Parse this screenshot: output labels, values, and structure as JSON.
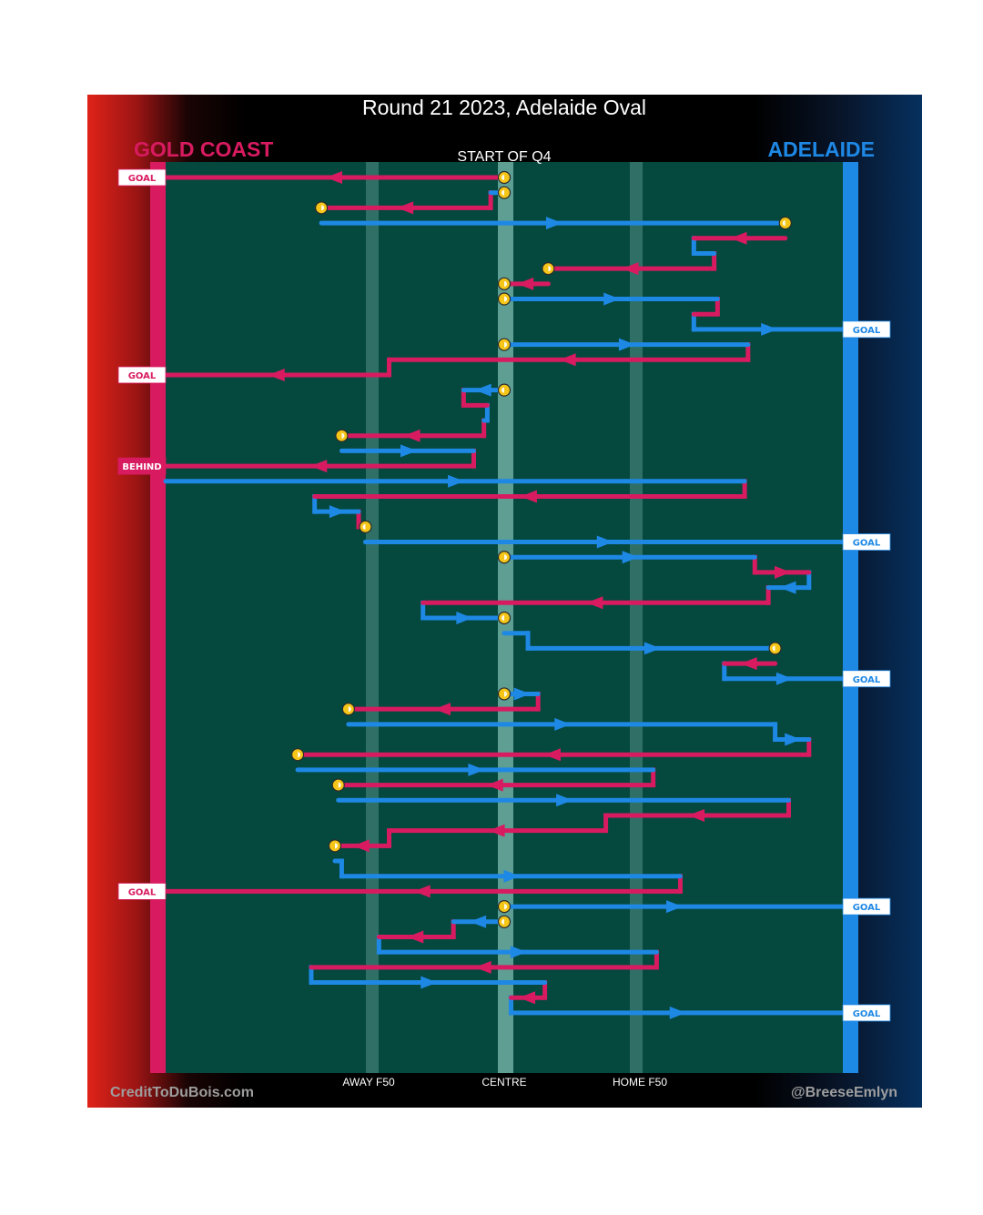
{
  "title": "Round 21 2023, Adelaide Oval",
  "subtitle": "START OF Q4",
  "teams": {
    "away": {
      "name": "GOLD COAST",
      "color": "#d81b60"
    },
    "home": {
      "name": "ADELAIDE",
      "color": "#1e88e5"
    }
  },
  "colors": {
    "field": "#05483e",
    "away_line": "#d81b60",
    "home_line": "#1e88e5",
    "marker": "#f5c518",
    "zone_line": "#2f6f66",
    "centre_line": "#5f9e93"
  },
  "credits": {
    "left": "CreditToDuBois.com",
    "right": "@BreeseEmlyn"
  },
  "chart_data": {
    "type": "line",
    "title": "Round 21 2023, Adelaide Oval",
    "subtitle": "START OF Q4",
    "x_axis": {
      "range": [
        -100,
        100
      ],
      "unit": "percent of ground (negative = Gold Coast goal end, positive = Adelaide goal end)",
      "ticks": [
        {
          "label": "AWAY F50",
          "value": -40
        },
        {
          "label": "CENTRE",
          "value": 0
        },
        {
          "label": "HOME F50",
          "value": 40
        }
      ]
    },
    "y_axis": {
      "meaning": "chain sequence, top to bottom",
      "range": [
        1,
        59
      ]
    },
    "series": [
      {
        "name": "GOLD COAST",
        "color": "#d81b60"
      },
      {
        "name": "ADELAIDE",
        "color": "#1e88e5"
      }
    ],
    "legend": "team names top-left (GOLD COAST) and top-right (ADELAIDE)",
    "chains": [
      {
        "start": true,
        "segs": [
          [
            "GC",
            1,
            0,
            -100
          ]
        ],
        "end": "GOAL"
      },
      {
        "start": true,
        "segs": [
          [
            "AD",
            2,
            0,
            -4
          ],
          [
            "GC",
            3,
            -4,
            -54
          ]
        ],
        "end": "flip"
      },
      {
        "start": false,
        "segs": [
          [
            "AD",
            4,
            -54,
            83
          ]
        ],
        "end": "flip"
      },
      {
        "start": false,
        "segs": [
          [
            "GC",
            5,
            83,
            56
          ],
          [
            "AD",
            6,
            56,
            62
          ],
          [
            "GC",
            7,
            62,
            13
          ]
        ],
        "end": "flip"
      },
      {
        "start": false,
        "segs": [
          [
            "GC",
            8,
            13,
            0
          ]
        ],
        "end": "flip"
      },
      {
        "start": true,
        "segs": [
          [
            "AD",
            9,
            0,
            63
          ],
          [
            "GC",
            10,
            63,
            56
          ],
          [
            "AD",
            11,
            56,
            100
          ]
        ],
        "end": "GOAL"
      },
      {
        "start": true,
        "segs": [
          [
            "AD",
            12,
            0,
            72
          ],
          [
            "GC",
            13,
            72,
            -34
          ],
          [
            "GC",
            14,
            -34,
            -100
          ]
        ],
        "end": "GOAL"
      },
      {
        "start": true,
        "segs": [
          [
            "AD",
            15,
            0,
            -12
          ],
          [
            "GC",
            16,
            -12,
            -5
          ],
          [
            "AD",
            17,
            -5,
            -6
          ],
          [
            "GC",
            18,
            -6,
            -48
          ]
        ],
        "end": "flip"
      },
      {
        "start": false,
        "segs": [
          [
            "AD",
            19,
            -48,
            -9
          ],
          [
            "GC",
            20,
            -9,
            -100
          ]
        ],
        "end": "BEHIND"
      },
      {
        "start": false,
        "segs": [
          [
            "AD",
            21,
            -100,
            71
          ],
          [
            "GC",
            22,
            71,
            -56
          ],
          [
            "AD",
            23,
            -56,
            -43
          ],
          [
            "GC",
            24,
            -43,
            -41
          ]
        ],
        "end": "flip"
      },
      {
        "start": false,
        "segs": [
          [
            "AD",
            25,
            -41,
            100
          ]
        ],
        "end": "GOAL"
      },
      {
        "start": true,
        "segs": [
          [
            "AD",
            26,
            0,
            74
          ],
          [
            "GC",
            27,
            74,
            90
          ],
          [
            "AD",
            28,
            90,
            78
          ],
          [
            "GC",
            29,
            78,
            -24
          ],
          [
            "AD",
            30,
            -24,
            0
          ]
        ],
        "end": "flip"
      },
      {
        "start": false,
        "segs": [
          [
            "AD",
            31,
            0,
            7
          ],
          [
            "AD",
            32,
            7,
            80
          ]
        ],
        "end": "flip"
      },
      {
        "start": false,
        "segs": [
          [
            "GC",
            33,
            80,
            65
          ],
          [
            "AD",
            34,
            65,
            100
          ]
        ],
        "end": "GOAL"
      },
      {
        "start": true,
        "segs": [
          [
            "AD",
            35,
            0,
            10
          ],
          [
            "GC",
            36,
            10,
            -46
          ]
        ],
        "end": "flip"
      },
      {
        "start": false,
        "segs": [
          [
            "AD",
            37,
            -46,
            80
          ],
          [
            "AD",
            38,
            80,
            90
          ],
          [
            "GC",
            39,
            90,
            -61
          ]
        ],
        "end": "flip"
      },
      {
        "start": false,
        "segs": [
          [
            "AD",
            40,
            -61,
            44
          ],
          [
            "GC",
            41,
            44,
            -49
          ]
        ],
        "end": "flip"
      },
      {
        "start": false,
        "segs": [
          [
            "AD",
            42,
            -49,
            84
          ],
          [
            "GC",
            43,
            84,
            30
          ],
          [
            "GC",
            44,
            30,
            -34
          ],
          [
            "GC",
            45,
            -34,
            -50
          ]
        ],
        "end": "flip"
      },
      {
        "start": false,
        "segs": [
          [
            "AD",
            46,
            -50,
            -48
          ],
          [
            "AD",
            47,
            -48,
            52
          ],
          [
            "GC",
            48,
            52,
            -100
          ]
        ],
        "end": "GOAL"
      },
      {
        "start": true,
        "segs": [
          [
            "AD",
            49,
            0,
            100
          ]
        ],
        "end": "GOAL"
      },
      {
        "start": true,
        "segs": [
          [
            "AD",
            50,
            0,
            -15
          ],
          [
            "GC",
            51,
            -15,
            -37
          ],
          [
            "AD",
            52,
            -37,
            45
          ],
          [
            "GC",
            53,
            45,
            -57
          ],
          [
            "AD",
            54,
            -57,
            12
          ],
          [
            "GC",
            55,
            12,
            2
          ],
          [
            "AD",
            56,
            2,
            100
          ]
        ],
        "end": "GOAL"
      }
    ],
    "end_labels": [
      "GOAL",
      "BEHIND"
    ],
    "score_events": [
      {
        "team": "GOLD COAST",
        "label": "GOAL",
        "seq": 1
      },
      {
        "team": "ADELAIDE",
        "label": "GOAL",
        "seq": 11
      },
      {
        "team": "GOLD COAST",
        "label": "GOAL",
        "seq": 14
      },
      {
        "team": "GOLD COAST",
        "label": "BEHIND",
        "seq": 20
      },
      {
        "team": "ADELAIDE",
        "label": "GOAL",
        "seq": 25
      },
      {
        "team": "ADELAIDE",
        "label": "GOAL",
        "seq": 34
      },
      {
        "team": "GOLD COAST",
        "label": "GOAL",
        "seq": 48
      },
      {
        "team": "ADELAIDE",
        "label": "GOAL",
        "seq": 49
      },
      {
        "team": "ADELAIDE",
        "label": "GOAL",
        "seq": 56
      }
    ]
  }
}
